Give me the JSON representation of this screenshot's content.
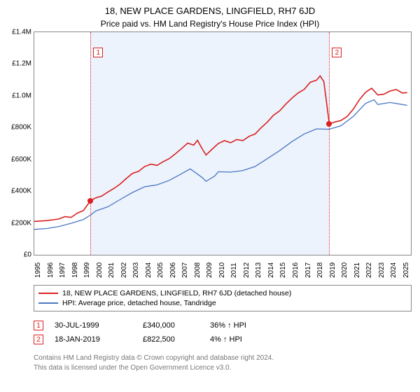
{
  "title": "18, NEW PLACE GARDENS, LINGFIELD, RH7 6JD",
  "subtitle": "Price paid vs. HM Land Registry's House Price Index (HPI)",
  "chart": {
    "type": "line",
    "background_color": "#ffffff",
    "band_color": "rgba(200,220,245,0.35)",
    "border_color": "#888888",
    "ylim": [
      0,
      1400000
    ],
    "ytick_step": 200000,
    "yticks": [
      {
        "v": 0,
        "label": "£0"
      },
      {
        "v": 200000,
        "label": "£200K"
      },
      {
        "v": 400000,
        "label": "£400K"
      },
      {
        "v": 600000,
        "label": "£600K"
      },
      {
        "v": 800000,
        "label": "£800K"
      },
      {
        "v": 1000000,
        "label": "£1.0M"
      },
      {
        "v": 1200000,
        "label": "£1.2M"
      },
      {
        "v": 1400000,
        "label": "£1.4M"
      }
    ],
    "xlim": [
      1995,
      2025.7
    ],
    "xticks": [
      1995,
      1996,
      1997,
      1998,
      1999,
      2000,
      2001,
      2002,
      2003,
      2004,
      2005,
      2006,
      2007,
      2008,
      2009,
      2010,
      2011,
      2012,
      2013,
      2014,
      2015,
      2016,
      2017,
      2018,
      2019,
      2020,
      2021,
      2022,
      2023,
      2024,
      2025
    ],
    "series_price": {
      "color": "#d9201f",
      "width": 1.6,
      "points": [
        [
          1995,
          210000
        ],
        [
          1996,
          215000
        ],
        [
          1997,
          225000
        ],
        [
          1997.5,
          240000
        ],
        [
          1998,
          235000
        ],
        [
          1998.5,
          262000
        ],
        [
          1999,
          278000
        ],
        [
          1999.58,
          340000
        ],
        [
          2000,
          358000
        ],
        [
          2000.5,
          370000
        ],
        [
          2001,
          395000
        ],
        [
          2001.5,
          418000
        ],
        [
          2002,
          445000
        ],
        [
          2002.5,
          480000
        ],
        [
          2003,
          512000
        ],
        [
          2003.5,
          525000
        ],
        [
          2004,
          555000
        ],
        [
          2004.5,
          570000
        ],
        [
          2005,
          562000
        ],
        [
          2005.5,
          585000
        ],
        [
          2006,
          605000
        ],
        [
          2006.5,
          635000
        ],
        [
          2007,
          668000
        ],
        [
          2007.5,
          702000
        ],
        [
          2008,
          690000
        ],
        [
          2008.3,
          720000
        ],
        [
          2008.7,
          665000
        ],
        [
          2009,
          628000
        ],
        [
          2009.5,
          665000
        ],
        [
          2010,
          700000
        ],
        [
          2010.5,
          718000
        ],
        [
          2011,
          705000
        ],
        [
          2011.5,
          725000
        ],
        [
          2012,
          718000
        ],
        [
          2012.5,
          745000
        ],
        [
          2013,
          760000
        ],
        [
          2013.5,
          800000
        ],
        [
          2014,
          835000
        ],
        [
          2014.5,
          878000
        ],
        [
          2015,
          905000
        ],
        [
          2015.5,
          948000
        ],
        [
          2016,
          985000
        ],
        [
          2016.5,
          1018000
        ],
        [
          2017,
          1040000
        ],
        [
          2017.5,
          1085000
        ],
        [
          2018,
          1098000
        ],
        [
          2018.3,
          1125000
        ],
        [
          2018.6,
          1090000
        ],
        [
          2019.05,
          822500
        ],
        [
          2019.5,
          835000
        ],
        [
          2020,
          845000
        ],
        [
          2020.5,
          870000
        ],
        [
          2021,
          915000
        ],
        [
          2021.5,
          975000
        ],
        [
          2022,
          1022000
        ],
        [
          2022.5,
          1048000
        ],
        [
          2023,
          1005000
        ],
        [
          2023.5,
          1010000
        ],
        [
          2024,
          1030000
        ],
        [
          2024.5,
          1040000
        ],
        [
          2025,
          1018000
        ],
        [
          2025.4,
          1020000
        ]
      ]
    },
    "series_hpi": {
      "color": "#4a77c4",
      "width": 1.3,
      "points": [
        [
          1995,
          160000
        ],
        [
          1996,
          165000
        ],
        [
          1997,
          178000
        ],
        [
          1998,
          198000
        ],
        [
          1999,
          222000
        ],
        [
          1999.58,
          250000
        ],
        [
          2000,
          275000
        ],
        [
          2001,
          302000
        ],
        [
          2002,
          348000
        ],
        [
          2003,
          392000
        ],
        [
          2004,
          428000
        ],
        [
          2005,
          440000
        ],
        [
          2006,
          468000
        ],
        [
          2007,
          510000
        ],
        [
          2007.7,
          540000
        ],
        [
          2008,
          525000
        ],
        [
          2008.7,
          485000
        ],
        [
          2009,
          462000
        ],
        [
          2009.7,
          495000
        ],
        [
          2010,
          522000
        ],
        [
          2011,
          520000
        ],
        [
          2012,
          530000
        ],
        [
          2013,
          555000
        ],
        [
          2014,
          605000
        ],
        [
          2015,
          655000
        ],
        [
          2016,
          712000
        ],
        [
          2017,
          760000
        ],
        [
          2018,
          792000
        ],
        [
          2019.05,
          790000
        ],
        [
          2019.5,
          800000
        ],
        [
          2020,
          812000
        ],
        [
          2021,
          870000
        ],
        [
          2022,
          952000
        ],
        [
          2022.7,
          975000
        ],
        [
          2023,
          945000
        ],
        [
          2024,
          958000
        ],
        [
          2025,
          945000
        ],
        [
          2025.4,
          940000
        ]
      ]
    },
    "sale_markers": [
      {
        "n": "1",
        "x": 1999.58,
        "y": 340000,
        "color": "#d9201f"
      },
      {
        "n": "2",
        "x": 2019.05,
        "y": 822500,
        "color": "#d9201f"
      }
    ],
    "band": {
      "start": 1999.58,
      "end": 2019.05
    }
  },
  "legend": {
    "items": [
      {
        "color": "#d9201f",
        "label": "18, NEW PLACE GARDENS, LINGFIELD, RH7 6JD (detached house)"
      },
      {
        "color": "#4a77c4",
        "label": "HPI: Average price, detached house, Tandridge"
      }
    ]
  },
  "sales": [
    {
      "n": "1",
      "color": "#d9201f",
      "date": "30-JUL-1999",
      "price": "£340,000",
      "delta": "36% ↑ HPI"
    },
    {
      "n": "2",
      "color": "#d9201f",
      "date": "18-JAN-2019",
      "price": "£822,500",
      "delta": "4% ↑ HPI"
    }
  ],
  "footer": {
    "line1": "Contains HM Land Registry data © Crown copyright and database right 2024.",
    "line2": "This data is licensed under the Open Government Licence v3.0."
  }
}
